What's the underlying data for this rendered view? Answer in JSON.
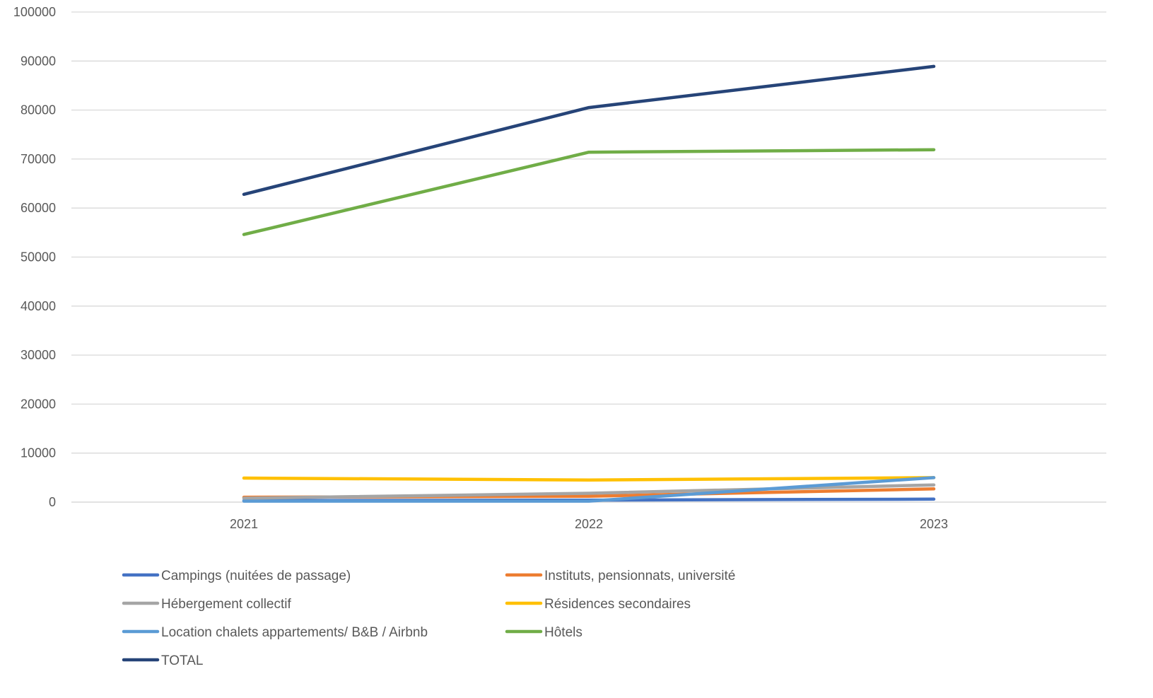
{
  "chart_data": {
    "type": "line",
    "title": "",
    "xlabel": "",
    "ylabel": "",
    "categories": [
      "2021",
      "2022",
      "2023"
    ],
    "ylim": [
      0,
      100000
    ],
    "yticks": [
      0,
      10000,
      20000,
      30000,
      40000,
      50000,
      60000,
      70000,
      80000,
      90000,
      100000
    ],
    "grid": true,
    "legend_position": "bottom",
    "series": [
      {
        "name": "Campings (nuitées de passage)",
        "color": "#4472C4",
        "values": [
          300,
          400,
          600
        ]
      },
      {
        "name": "Instituts, pensionnats, université",
        "color": "#ED7D31",
        "values": [
          1000,
          1200,
          2700
        ]
      },
      {
        "name": "Hébergement collectif",
        "color": "#A5A5A5",
        "values": [
          800,
          1800,
          3500
        ]
      },
      {
        "name": "Résidences secondaires",
        "color": "#FFC000",
        "values": [
          4900,
          4500,
          5000
        ]
      },
      {
        "name": "Location chalets appartements/ B&B / Airbnb",
        "color": "#5B9BD5",
        "values": [
          200,
          200,
          5000
        ]
      },
      {
        "name": "Hôtels",
        "color": "#70AD47",
        "values": [
          54600,
          71400,
          71900
        ]
      },
      {
        "name": "TOTAL",
        "color": "#264478",
        "values": [
          62800,
          80500,
          88900
        ]
      }
    ]
  }
}
